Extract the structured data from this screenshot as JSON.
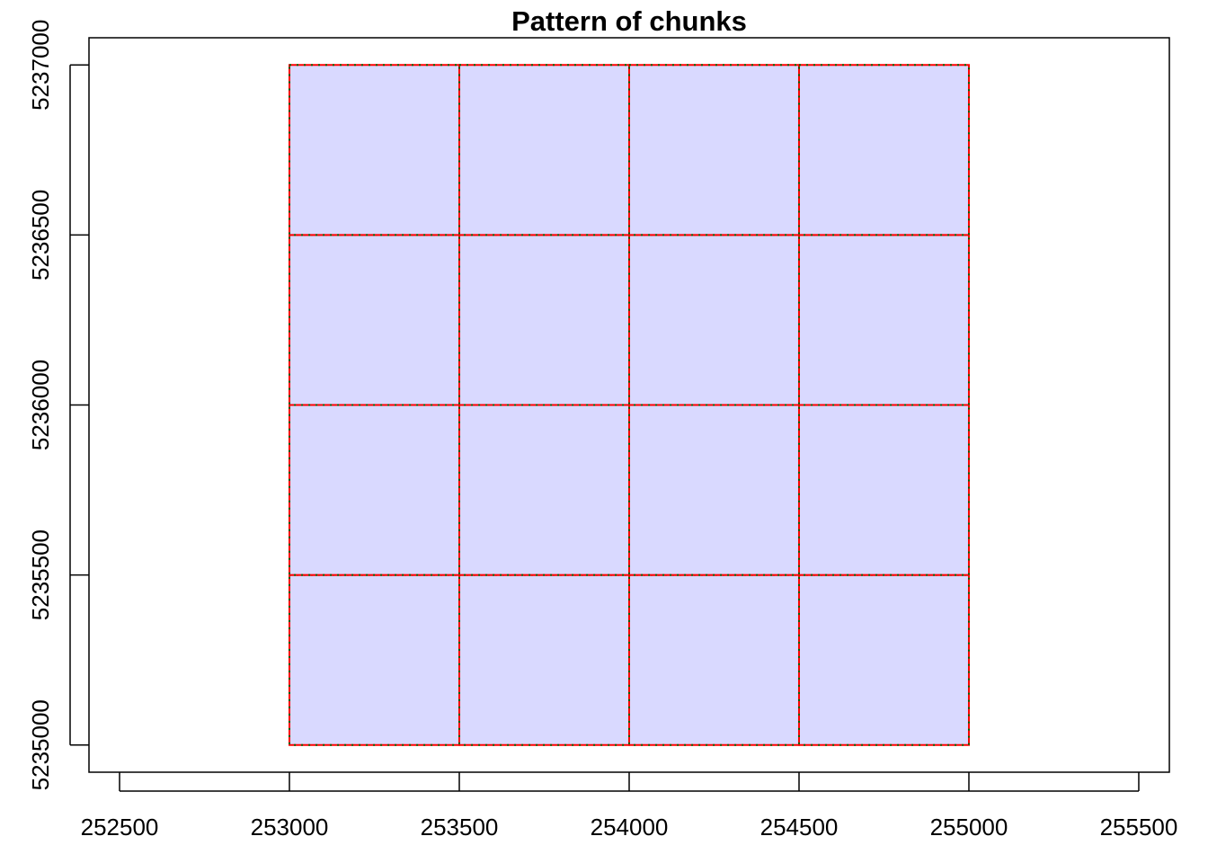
{
  "chart_data": {
    "type": "rect",
    "title": "Pattern of chunks",
    "xlabel": "",
    "ylabel": "",
    "xlim": [
      252410,
      255590
    ],
    "ylim": [
      5234920,
      5237080
    ],
    "x_ticks": [
      252500,
      253000,
      253500,
      254000,
      254500,
      255000,
      255500
    ],
    "y_ticks": [
      5235000,
      5235500,
      5236000,
      5236500,
      5237000
    ],
    "x_tick_labels": [
      "252500",
      "253000",
      "253500",
      "254000",
      "254500",
      "255000",
      "255500"
    ],
    "y_tick_labels": [
      "5235000",
      "5235500",
      "5236000",
      "5236500",
      "5237000"
    ],
    "grid": false,
    "colors": {
      "fill": "#D9D9FF",
      "border": "#FF0000",
      "dotted_border": "#006400"
    },
    "chunks": {
      "x_breaks": [
        253000,
        253500,
        254000,
        254500,
        255000
      ],
      "y_breaks": [
        5235000,
        5235500,
        5236000,
        5236500,
        5237000
      ]
    }
  }
}
